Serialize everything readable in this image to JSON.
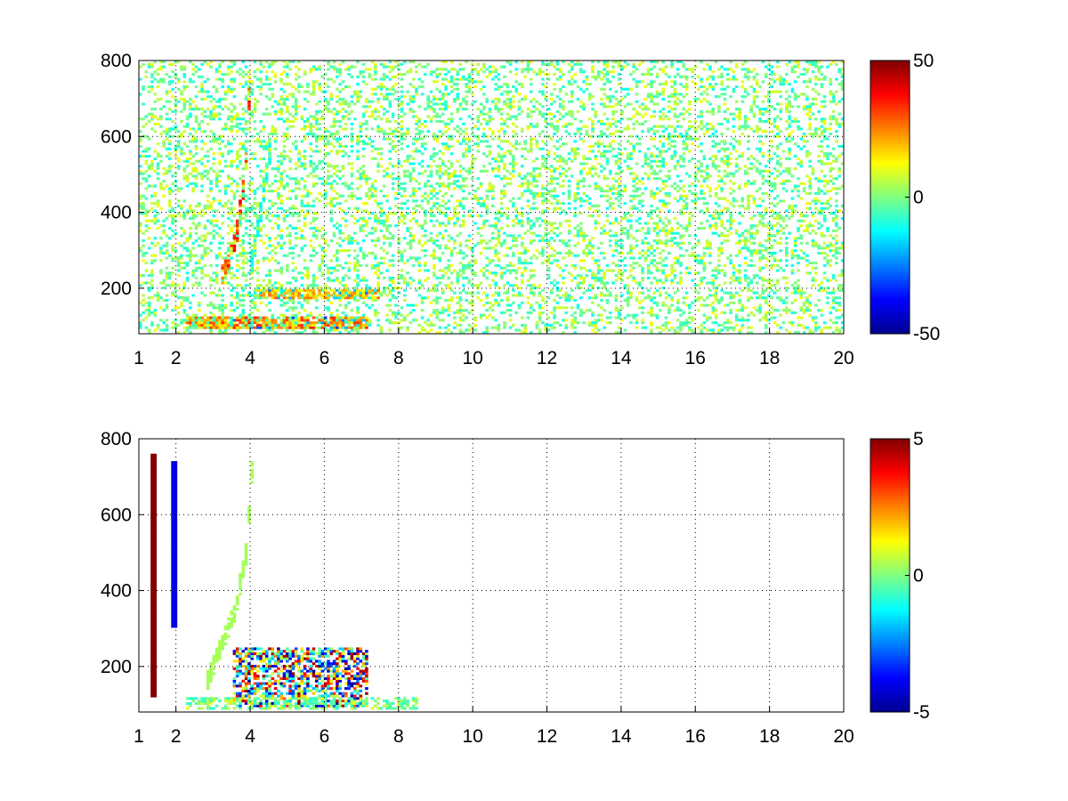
{
  "chart_data": [
    {
      "type": "heatmap",
      "title": "",
      "xlabel": "",
      "ylabel": "",
      "xlim": [
        1,
        20
      ],
      "ylim": [
        80,
        800
      ],
      "x_ticks": [
        1,
        2,
        4,
        6,
        8,
        10,
        12,
        14,
        16,
        18,
        20
      ],
      "x_tick_labels": [
        "1",
        "2",
        "4",
        "6",
        "8",
        "10",
        "12",
        "14",
        "16",
        "18",
        "20"
      ],
      "y_ticks": [
        200,
        400,
        600,
        800
      ],
      "y_tick_labels": [
        "200",
        "400",
        "600",
        "800"
      ],
      "grid": true,
      "colormap": "jet",
      "colorbar": {
        "min": -50,
        "max": 50,
        "ticks": [
          50,
          0,
          -50
        ],
        "tick_labels": [
          "50",
          "0",
          "-50"
        ]
      },
      "features": [
        {
          "kind": "band",
          "x_range": [
            2.3,
            7.2
          ],
          "y": 110,
          "thickness": 30,
          "value": 35
        },
        {
          "kind": "band",
          "x_range": [
            4.2,
            7.5
          ],
          "y": 185,
          "thickness": 22,
          "value": 28
        },
        {
          "kind": "curve",
          "points": [
            [
              3.2,
              230
            ],
            [
              3.45,
              280
            ],
            [
              3.65,
              350
            ],
            [
              3.8,
              450
            ],
            [
              3.9,
              550
            ],
            [
              3.95,
              650
            ],
            [
              4.0,
              780
            ]
          ],
          "value": 40
        },
        {
          "kind": "curve",
          "points": [
            [
              4.0,
              250
            ],
            [
              4.2,
              350
            ],
            [
              4.4,
              480
            ],
            [
              4.6,
              600
            ]
          ],
          "value": -15
        },
        {
          "kind": "noise",
          "x_range": [
            1,
            20
          ],
          "y_range": [
            80,
            800
          ],
          "value_range": [
            -12,
            12
          ],
          "density": 0.28
        }
      ]
    },
    {
      "type": "heatmap",
      "title": "",
      "xlabel": "",
      "ylabel": "",
      "xlim": [
        1,
        20
      ],
      "ylim": [
        80,
        800
      ],
      "x_ticks": [
        1,
        2,
        4,
        6,
        8,
        10,
        12,
        14,
        16,
        18,
        20
      ],
      "x_tick_labels": [
        "1",
        "2",
        "4",
        "6",
        "8",
        "10",
        "12",
        "14",
        "16",
        "18",
        "20"
      ],
      "y_ticks": [
        200,
        400,
        600,
        800
      ],
      "y_tick_labels": [
        "200",
        "400",
        "600",
        "800"
      ],
      "grid": true,
      "colormap": "jet",
      "colorbar": {
        "min": -5,
        "max": 5,
        "ticks": [
          5,
          0,
          -5
        ],
        "tick_labels": [
          "5",
          "0",
          "-5"
        ]
      },
      "features": [
        {
          "kind": "vline",
          "x": 1.4,
          "y_range": [
            120,
            760
          ],
          "value": 5
        },
        {
          "kind": "vline",
          "x": 1.95,
          "y_range": [
            300,
            740
          ],
          "value": -4
        },
        {
          "kind": "curve",
          "points": [
            [
              2.8,
              150
            ],
            [
              3.2,
              250
            ],
            [
              3.6,
              350
            ],
            [
              3.9,
              500
            ],
            [
              4.0,
              650
            ],
            [
              4.1,
              780
            ]
          ],
          "value": 0.5
        },
        {
          "kind": "patch",
          "x_range": [
            3.5,
            7.2
          ],
          "y_range": [
            90,
            250
          ],
          "value_range": [
            -5,
            5
          ],
          "density": 0.6
        },
        {
          "kind": "patch",
          "x_range": [
            2.3,
            8.5
          ],
          "y_range": [
            85,
            120
          ],
          "value_range": [
            -1,
            1
          ],
          "density": 0.5
        }
      ]
    }
  ]
}
